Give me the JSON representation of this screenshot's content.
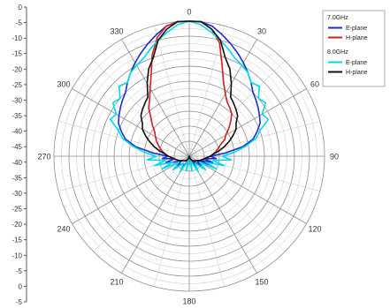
{
  "chart_data": {
    "type": "line",
    "projection": "polar",
    "angle_unit": "degrees",
    "radial_range": [
      -45,
      0
    ],
    "radial_ticks": [
      0,
      -5,
      -10,
      -15,
      -20,
      -25,
      -30,
      -35,
      -40,
      -45,
      -40,
      -35,
      -30,
      -25,
      -20,
      -15,
      -10,
      -5,
      0,
      -5
    ],
    "radial_tick_labels": [
      "0",
      "-5",
      "-10",
      "-15",
      "-20",
      "-25",
      "-30",
      "-35",
      "-40",
      "-45",
      "-40",
      "-35",
      "-30",
      "-25",
      "-20",
      "-15",
      "-10",
      "-5",
      "0",
      "-5"
    ],
    "angle_labels": [
      "0",
      "30",
      "60",
      "90",
      "120",
      "150",
      "180",
      "210",
      "240",
      "270",
      "300",
      "330"
    ],
    "legend_position": "top-right",
    "grid": true,
    "legend_groups": [
      {
        "title": "7.0GHz",
        "entries": [
          "E-plane",
          "H-plane"
        ]
      },
      {
        "title": "8.0GHz",
        "entries": [
          "E-plane",
          "H-plane"
        ]
      }
    ],
    "series": [
      {
        "name": "E-plane",
        "group": "7.0GHz",
        "color": "#1c2dc8",
        "points": [
          [
            0,
            0
          ],
          [
            5,
            0
          ],
          [
            10,
            -1
          ],
          [
            15,
            -3
          ],
          [
            20,
            -5
          ],
          [
            25,
            -7
          ],
          [
            30,
            -9
          ],
          [
            35,
            -11
          ],
          [
            40,
            -13
          ],
          [
            45,
            -15
          ],
          [
            50,
            -16
          ],
          [
            55,
            -17
          ],
          [
            60,
            -18
          ],
          [
            65,
            -19
          ],
          [
            70,
            -21
          ],
          [
            75,
            -23
          ],
          [
            80,
            -27
          ],
          [
            85,
            -33
          ],
          [
            90,
            -38
          ],
          [
            95,
            -36
          ],
          [
            100,
            -40
          ],
          [
            105,
            -37
          ],
          [
            110,
            -41
          ],
          [
            115,
            -38
          ],
          [
            120,
            -42
          ],
          [
            130,
            -40
          ],
          [
            140,
            -43
          ],
          [
            150,
            -41
          ],
          [
            160,
            -43
          ],
          [
            170,
            -42
          ],
          [
            180,
            -45
          ],
          [
            190,
            -42
          ],
          [
            200,
            -43
          ],
          [
            210,
            -41
          ],
          [
            220,
            -42
          ],
          [
            230,
            -40
          ],
          [
            240,
            -42
          ],
          [
            250,
            -39
          ],
          [
            255,
            -37
          ],
          [
            260,
            -40
          ],
          [
            265,
            -36
          ],
          [
            270,
            -38
          ],
          [
            275,
            -33
          ],
          [
            280,
            -27
          ],
          [
            285,
            -23
          ],
          [
            290,
            -21
          ],
          [
            295,
            -19
          ],
          [
            300,
            -18
          ],
          [
            305,
            -17
          ],
          [
            310,
            -16
          ],
          [
            315,
            -15
          ],
          [
            320,
            -13
          ],
          [
            325,
            -11
          ],
          [
            330,
            -9
          ],
          [
            335,
            -7
          ],
          [
            340,
            -5
          ],
          [
            345,
            -3
          ],
          [
            350,
            -1
          ],
          [
            355,
            0
          ]
        ]
      },
      {
        "name": "H-plane",
        "group": "7.0GHz",
        "color": "#d21e1e",
        "points": [
          [
            0,
            0
          ],
          [
            5,
            0
          ],
          [
            10,
            -2
          ],
          [
            15,
            -6
          ],
          [
            20,
            -13
          ],
          [
            25,
            -18
          ],
          [
            30,
            -21
          ],
          [
            35,
            -23
          ],
          [
            40,
            -24
          ],
          [
            45,
            -25
          ],
          [
            50,
            -27
          ],
          [
            55,
            -29
          ],
          [
            60,
            -31
          ],
          [
            65,
            -32
          ],
          [
            70,
            -34
          ],
          [
            75,
            -35
          ],
          [
            80,
            -36
          ],
          [
            85,
            -37
          ],
          [
            90,
            -38
          ],
          [
            100,
            -40
          ],
          [
            110,
            -41
          ],
          [
            120,
            -42
          ],
          [
            140,
            -43
          ],
          [
            160,
            -43
          ],
          [
            180,
            -45
          ],
          [
            200,
            -43
          ],
          [
            220,
            -43
          ],
          [
            240,
            -42
          ],
          [
            250,
            -41
          ],
          [
            260,
            -40
          ],
          [
            270,
            -38
          ],
          [
            275,
            -37
          ],
          [
            280,
            -36
          ],
          [
            285,
            -35
          ],
          [
            290,
            -34
          ],
          [
            295,
            -33
          ],
          [
            300,
            -32
          ],
          [
            305,
            -31
          ],
          [
            310,
            -29
          ],
          [
            315,
            -27
          ],
          [
            320,
            -24
          ],
          [
            325,
            -22
          ],
          [
            330,
            -19
          ],
          [
            335,
            -15
          ],
          [
            340,
            -9
          ],
          [
            345,
            -4
          ],
          [
            350,
            -1
          ],
          [
            355,
            0
          ]
        ]
      },
      {
        "name": "E-plane",
        "group": "8.0GHz",
        "color": "#00d8ea",
        "points": [
          [
            0,
            0
          ],
          [
            5,
            -1
          ],
          [
            10,
            -3
          ],
          [
            15,
            -5
          ],
          [
            20,
            -7
          ],
          [
            25,
            -9
          ],
          [
            30,
            -10
          ],
          [
            35,
            -11
          ],
          [
            40,
            -13
          ],
          [
            45,
            -12
          ],
          [
            50,
            -15
          ],
          [
            55,
            -14
          ],
          [
            60,
            -17
          ],
          [
            65,
            -16
          ],
          [
            70,
            -20
          ],
          [
            75,
            -22
          ],
          [
            80,
            -26
          ],
          [
            85,
            -30
          ],
          [
            90,
            -34
          ],
          [
            95,
            -31
          ],
          [
            100,
            -37
          ],
          [
            105,
            -33
          ],
          [
            110,
            -39
          ],
          [
            115,
            -35
          ],
          [
            120,
            -41
          ],
          [
            130,
            -38
          ],
          [
            140,
            -42
          ],
          [
            150,
            -39
          ],
          [
            160,
            -43
          ],
          [
            170,
            -40
          ],
          [
            180,
            -45
          ],
          [
            190,
            -40
          ],
          [
            200,
            -43
          ],
          [
            210,
            -39
          ],
          [
            220,
            -42
          ],
          [
            230,
            -38
          ],
          [
            240,
            -41
          ],
          [
            245,
            -35
          ],
          [
            250,
            -39
          ],
          [
            255,
            -33
          ],
          [
            260,
            -37
          ],
          [
            265,
            -31
          ],
          [
            270,
            -34
          ],
          [
            275,
            -30
          ],
          [
            280,
            -26
          ],
          [
            285,
            -22
          ],
          [
            290,
            -20
          ],
          [
            295,
            -16
          ],
          [
            300,
            -17
          ],
          [
            305,
            -14
          ],
          [
            310,
            -15
          ],
          [
            315,
            -12
          ],
          [
            320,
            -13
          ],
          [
            325,
            -11
          ],
          [
            330,
            -10
          ],
          [
            335,
            -9
          ],
          [
            340,
            -7
          ],
          [
            345,
            -5
          ],
          [
            350,
            -3
          ],
          [
            355,
            -1
          ]
        ]
      },
      {
        "name": "H-plane",
        "group": "8.0GHz",
        "color": "#111111",
        "points": [
          [
            0,
            0
          ],
          [
            5,
            0
          ],
          [
            10,
            -2
          ],
          [
            15,
            -5
          ],
          [
            20,
            -10
          ],
          [
            25,
            -13
          ],
          [
            30,
            -17
          ],
          [
            35,
            -21
          ],
          [
            40,
            -22
          ],
          [
            45,
            -23
          ],
          [
            50,
            -24
          ],
          [
            55,
            -26
          ],
          [
            60,
            -27
          ],
          [
            65,
            -29
          ],
          [
            70,
            -31
          ],
          [
            75,
            -33
          ],
          [
            80,
            -35
          ],
          [
            85,
            -37
          ],
          [
            90,
            -38
          ],
          [
            100,
            -40
          ],
          [
            110,
            -41
          ],
          [
            120,
            -42
          ],
          [
            140,
            -43
          ],
          [
            160,
            -44
          ],
          [
            180,
            -45
          ],
          [
            200,
            -44
          ],
          [
            220,
            -43
          ],
          [
            240,
            -42
          ],
          [
            250,
            -41
          ],
          [
            260,
            -40
          ],
          [
            270,
            -38
          ],
          [
            275,
            -37
          ],
          [
            280,
            -35
          ],
          [
            285,
            -33
          ],
          [
            290,
            -31
          ],
          [
            295,
            -29
          ],
          [
            300,
            -27
          ],
          [
            305,
            -26
          ],
          [
            310,
            -24
          ],
          [
            315,
            -23
          ],
          [
            320,
            -22
          ],
          [
            325,
            -21
          ],
          [
            330,
            -17
          ],
          [
            335,
            -13
          ],
          [
            340,
            -10
          ],
          [
            345,
            -5
          ],
          [
            350,
            -2
          ],
          [
            355,
            0
          ]
        ]
      }
    ]
  }
}
